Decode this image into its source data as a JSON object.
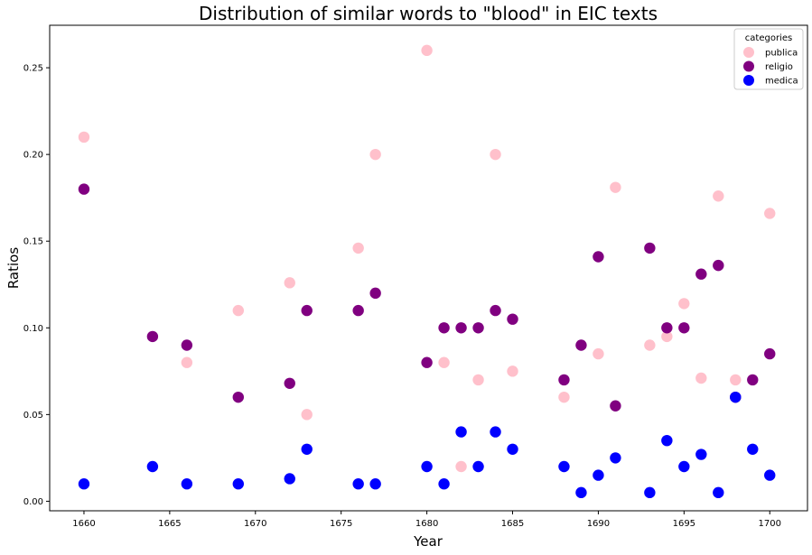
{
  "chart_data": {
    "type": "scatter",
    "title": "Distribution of similar words to \"blood\" in EIC texts",
    "xlabel": "Year",
    "ylabel": "Ratios",
    "xlim": [
      1658,
      1702.2
    ],
    "ylim": [
      -0.0055,
      0.2745
    ],
    "xticks": [
      1660,
      1665,
      1670,
      1675,
      1680,
      1685,
      1690,
      1695,
      1700
    ],
    "yticks": [
      0.0,
      0.05,
      0.1,
      0.15,
      0.2,
      0.25
    ],
    "ytick_labels": [
      "0.00",
      "0.05",
      "0.10",
      "0.15",
      "0.20",
      "0.25"
    ],
    "legend": {
      "title": "categories",
      "position": "top-right"
    },
    "series": [
      {
        "name": "publica",
        "color": "#ffc0cb",
        "x": [
          1660,
          1666,
          1669,
          1672,
          1673,
          1676,
          1677,
          1680,
          1681,
          1682,
          1683,
          1684,
          1685,
          1688,
          1690,
          1691,
          1693,
          1694,
          1695,
          1696,
          1697,
          1698,
          1700
        ],
        "y": [
          0.21,
          0.08,
          0.11,
          0.126,
          0.05,
          0.146,
          0.2,
          0.26,
          0.08,
          0.02,
          0.07,
          0.2,
          0.075,
          0.06,
          0.085,
          0.181,
          0.09,
          0.095,
          0.114,
          0.071,
          0.176,
          0.07,
          0.166
        ]
      },
      {
        "name": "religio",
        "color": "#800080",
        "x": [
          1660,
          1664,
          1666,
          1669,
          1672,
          1673,
          1676,
          1677,
          1680,
          1681,
          1682,
          1683,
          1684,
          1685,
          1688,
          1689,
          1690,
          1691,
          1693,
          1694,
          1695,
          1696,
          1697,
          1698,
          1699,
          1700
        ],
        "y": [
          0.18,
          0.095,
          0.09,
          0.06,
          0.068,
          0.11,
          0.11,
          0.12,
          0.08,
          0.1,
          0.1,
          0.1,
          0.11,
          0.105,
          0.07,
          0.09,
          0.141,
          0.055,
          0.146,
          0.1,
          0.1,
          0.131,
          0.136,
          0.06,
          0.07,
          0.085
        ]
      },
      {
        "name": "medica",
        "color": "#0000ff",
        "x": [
          1660,
          1664,
          1666,
          1669,
          1672,
          1673,
          1676,
          1677,
          1680,
          1681,
          1682,
          1683,
          1684,
          1685,
          1688,
          1689,
          1690,
          1691,
          1693,
          1694,
          1695,
          1696,
          1697,
          1698,
          1699,
          1700
        ],
        "y": [
          0.01,
          0.02,
          0.01,
          0.01,
          0.013,
          0.03,
          0.01,
          0.01,
          0.02,
          0.01,
          0.04,
          0.02,
          0.04,
          0.03,
          0.02,
          0.005,
          0.015,
          0.025,
          0.005,
          0.035,
          0.02,
          0.027,
          0.005,
          0.06,
          0.03,
          0.015
        ]
      }
    ]
  }
}
